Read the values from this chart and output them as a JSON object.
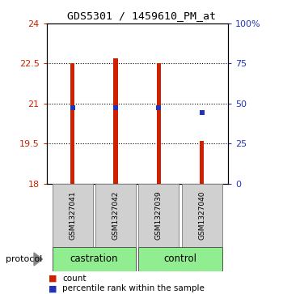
{
  "title": "GDS5301 / 1459610_PM_at",
  "samples": [
    "GSM1327041",
    "GSM1327042",
    "GSM1327039",
    "GSM1327040"
  ],
  "groups": [
    "castration",
    "castration",
    "control",
    "control"
  ],
  "bar_bottom": 18,
  "bar_tops": [
    22.5,
    22.7,
    22.5,
    19.6
  ],
  "percentile_values": [
    20.85,
    20.85,
    20.85,
    20.65
  ],
  "ylim_left": [
    18,
    24
  ],
  "ylim_right": [
    0,
    100
  ],
  "yticks_left": [
    18,
    19.5,
    21,
    22.5,
    24
  ],
  "ytick_labels_left": [
    "18",
    "19.5",
    "21",
    "22.5",
    "24"
  ],
  "yticks_right": [
    0,
    25,
    50,
    75,
    100
  ],
  "ytick_labels_right": [
    "0",
    "25",
    "50",
    "75",
    "100%"
  ],
  "bar_color": "#CC2200",
  "percentile_color": "#2233BB",
  "bg_color": "#ffffff",
  "plot_bg": "#ffffff",
  "label_color_left": "#CC2200",
  "label_color_right": "#2233BB",
  "sample_box_color": "#d0d0d0",
  "group_color": "#90EE90",
  "legend_count_label": "count",
  "legend_pct_label": "percentile rank within the sample",
  "protocol_label": "protocol",
  "gridline_values": [
    19.5,
    21,
    22.5
  ],
  "bar_width": 0.1
}
